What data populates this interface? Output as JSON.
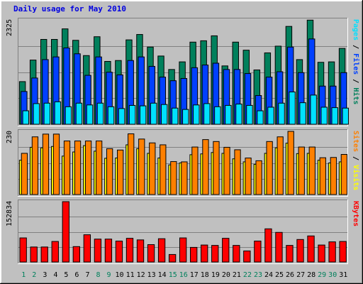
{
  "chart_data": {
    "type": "bar",
    "title": "Daily usage for May 2010",
    "categories": [
      "1",
      "2",
      "3",
      "4",
      "5",
      "6",
      "7",
      "8",
      "9",
      "10",
      "11",
      "12",
      "13",
      "14",
      "15",
      "16",
      "17",
      "18",
      "19",
      "20",
      "21",
      "22",
      "23",
      "24",
      "25",
      "26",
      "27",
      "28",
      "29",
      "30",
      "31"
    ],
    "weekend_days": [
      "1",
      "2",
      "8",
      "9",
      "15",
      "16",
      "22",
      "23",
      "29",
      "30"
    ],
    "colors": {
      "hits": "#00805c",
      "files": "#0040ff",
      "pages": "#00e0ff",
      "visits": "#ffff00",
      "sites": "#ff8000",
      "kbytes": "#ff0000",
      "weekday_label": "#000000",
      "weekend_label": "#00805c"
    },
    "panels": [
      {
        "ymax_label": "2325",
        "ymax": 2325,
        "legend": [
          {
            "text": "Pages",
            "color": "#00e0ff"
          },
          {
            "text": " / ",
            "color": "#000000"
          },
          {
            "text": "Files",
            "color": "#0040ff"
          },
          {
            "text": " / ",
            "color": "#000000"
          },
          {
            "text": "Hits",
            "color": "#00805c"
          }
        ],
        "series": [
          {
            "name": "Hits",
            "color": "#00805c",
            "values": [
              950,
              1430,
              1890,
              1890,
              2125,
              1870,
              1530,
              1950,
              1400,
              1420,
              1880,
              2000,
              1720,
              1520,
              1220,
              1390,
              1830,
              1860,
              1970,
              1300,
              1830,
              1650,
              1210,
              1590,
              1740,
              2180,
              1440,
              2320,
              1380,
              1390,
              1690
            ]
          },
          {
            "name": "Files",
            "color": "#0040ff",
            "values": [
              730,
              1030,
              1440,
              1500,
              1700,
              1570,
              1090,
              1500,
              1160,
              1100,
              1420,
              1500,
              1290,
              1050,
              970,
              1020,
              1260,
              1320,
              1360,
              1220,
              1220,
              1130,
              640,
              1050,
              1170,
              1720,
              1150,
              1900,
              850,
              850,
              1150
            ]
          },
          {
            "name": "Pages",
            "color": "#00e0ff",
            "values": [
              300,
              460,
              470,
              500,
              390,
              470,
              430,
              470,
              390,
              350,
              420,
              410,
              470,
              440,
              360,
              330,
              430,
              460,
              390,
              420,
              450,
              420,
              300,
              380,
              470,
              720,
              480,
              650,
              380,
              370,
              360
            ]
          }
        ]
      },
      {
        "ymax_label": "230",
        "ymax": 230,
        "legend": [
          {
            "text": "Sites",
            "color": "#ff8000"
          },
          {
            "text": " / ",
            "color": "#000000"
          },
          {
            "text": "Visits",
            "color": "#ffff00"
          }
        ],
        "series": [
          {
            "name": "Visits",
            "color": "#ffff00",
            "values": [
              125,
              172,
              170,
              175,
              140,
              155,
              178,
              158,
              132,
              133,
              181,
              167,
              150,
              133,
              108,
              115,
              145,
              148,
              153,
              150,
              130,
              119,
              110,
              150,
              170,
              187,
              149,
              150,
              125,
              115,
              119
            ]
          },
          {
            "name": "Sites",
            "color": "#ff8000",
            "values": [
              150,
              210,
              220,
              220,
              195,
              195,
              195,
              195,
              167,
              162,
              221,
              202,
              188,
              181,
              120,
              119,
              173,
              200,
              193,
              172,
              163,
              133,
              123,
              193,
              210,
              230,
              173,
              173,
              134,
              135,
              146
            ]
          }
        ]
      },
      {
        "ymax_label": "152834",
        "ymax": 152834,
        "legend": [
          {
            "text": "KBytes",
            "color": "#ff0000"
          }
        ],
        "series": [
          {
            "name": "KBytes",
            "color": "#ff0000",
            "values": [
              61000,
              38000,
              38000,
              52000,
              152834,
              39000,
              69000,
              58000,
              58000,
              53000,
              60000,
              56000,
              44000,
              59000,
              19000,
              61000,
              37000,
              43000,
              42000,
              60000,
              42000,
              28000,
              53000,
              84000,
              75000,
              42000,
              57000,
              66000,
              43000,
              51000,
              52000
            ]
          }
        ]
      }
    ]
  }
}
